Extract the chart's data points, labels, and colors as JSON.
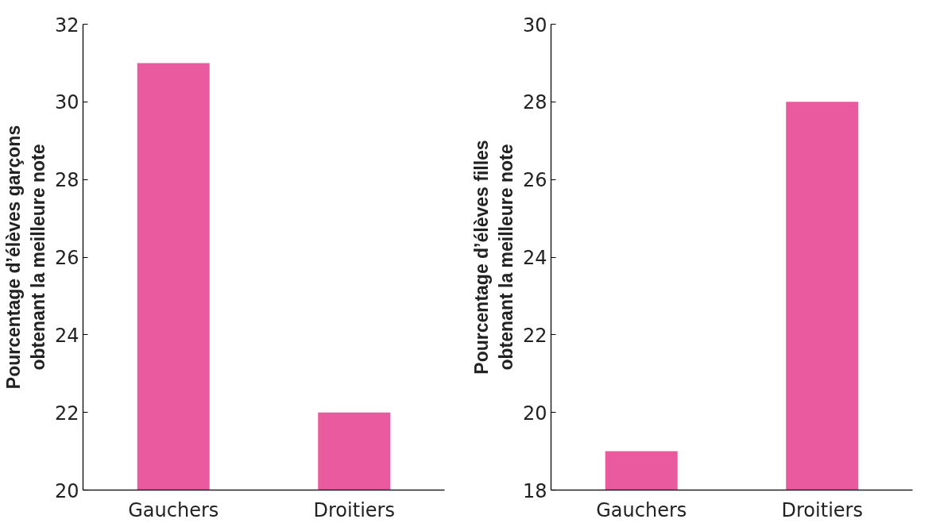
{
  "chart_data": [
    {
      "type": "bar",
      "ylabel": "Pourcentage d’élèves garçons\nobtenant la meilleure note",
      "categories": [
        "Gauchers",
        "Droitiers"
      ],
      "values": [
        31,
        22
      ],
      "color": "#ea5a9e",
      "ylim": [
        20,
        32
      ],
      "yticks": [
        20,
        22,
        24,
        26,
        28,
        30,
        32
      ],
      "grid": false
    },
    {
      "type": "bar",
      "ylabel": "Pourcentage d’élèves filles\nobtenant la meilleure note",
      "categories": [
        "Gauchers",
        "Droitiers"
      ],
      "values": [
        19,
        28
      ],
      "color": "#ea5a9e",
      "ylim": [
        18,
        30
      ],
      "yticks": [
        18,
        20,
        22,
        24,
        26,
        28,
        30
      ],
      "grid": false
    }
  ]
}
